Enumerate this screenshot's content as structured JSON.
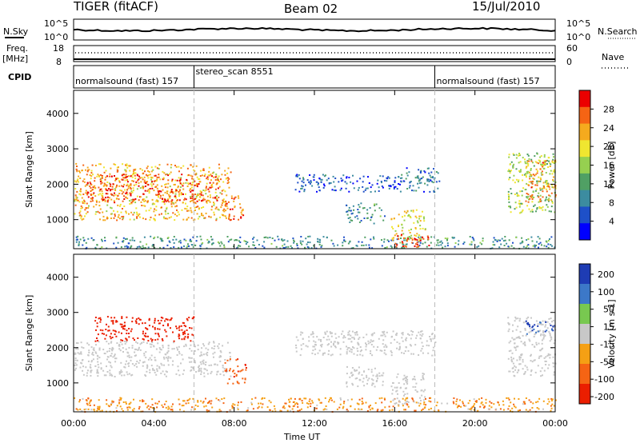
{
  "header": {
    "left": "TIGER (fitACF)",
    "center": "Beam 02",
    "right": "15/Jul/2010"
  },
  "top_panel": {
    "left_label": "N.Sky",
    "right_label": "N.Search",
    "scale_top": "10^5",
    "scale_bottom": "10^0",
    "freq_label_1": "Freq.",
    "freq_label_2": "[MHz]",
    "freq_ticks": [
      "18",
      "8"
    ],
    "nave_label": "Nave",
    "nave_ticks": [
      "60",
      "0"
    ],
    "cpid_label": "CPID"
  },
  "cpid": [
    {
      "name": "normalsound (fast)",
      "id": "157",
      "start": "00:00",
      "end": "06:00"
    },
    {
      "name": "stereo_scan",
      "id": "8551",
      "start": "06:00",
      "end": "18:00"
    },
    {
      "name": "normalsound (fast)",
      "id": "157",
      "start": "18:00",
      "end": "00:00"
    }
  ],
  "chart_data": [
    {
      "type": "heatmap",
      "title": "Beam 02",
      "xlabel": "Time UT",
      "ylabel": "Slant Range [km]",
      "x_ticks": [
        "00:00",
        "04:00",
        "08:00",
        "12:00",
        "16:00",
        "20:00",
        "00:00"
      ],
      "y_ticks": [
        1000,
        2000,
        3000,
        4000
      ],
      "xlim_hours": [
        0,
        24
      ],
      "ylim": [
        180,
        4650
      ],
      "colorbar": {
        "label": "Power [dB]",
        "ticks": [
          4,
          8,
          12,
          16,
          20,
          24,
          28
        ],
        "range": [
          0,
          32
        ],
        "colors": [
          "#0000ff",
          "#1e50c8",
          "#3c8ca0",
          "#50a064",
          "#96d050",
          "#f0e630",
          "#f5aa1e",
          "#f56414",
          "#eb0000"
        ]
      },
      "regions": [
        {
          "t": [
            0.0,
            7.8
          ],
          "r": [
            1000,
            2600
          ],
          "value": 22
        },
        {
          "t": [
            0.5,
            7.2
          ],
          "r": [
            1500,
            2300
          ],
          "value": 28
        },
        {
          "t": [
            7.5,
            8.6
          ],
          "r": [
            1000,
            1700
          ],
          "value": 26
        },
        {
          "t": [
            0.0,
            24.0
          ],
          "r": [
            200,
            550
          ],
          "value": 10
        },
        {
          "t": [
            13.5,
            15.5
          ],
          "r": [
            900,
            1500
          ],
          "value": 10
        },
        {
          "t": [
            11.0,
            16.5
          ],
          "r": [
            1800,
            2300
          ],
          "value": 6
        },
        {
          "t": [
            16.5,
            18.2
          ],
          "r": [
            1800,
            2500
          ],
          "value": 8
        },
        {
          "t": [
            15.8,
            17.5
          ],
          "r": [
            400,
            1300
          ],
          "value": 20
        },
        {
          "t": [
            16.0,
            17.8
          ],
          "r": [
            250,
            600
          ],
          "value": 28
        },
        {
          "t": [
            21.6,
            24.0
          ],
          "r": [
            1200,
            2900
          ],
          "value": 16
        },
        {
          "t": [
            22.5,
            24.0
          ],
          "r": [
            1500,
            2700
          ],
          "value": 24
        }
      ]
    },
    {
      "type": "heatmap",
      "xlabel": "Time UT",
      "ylabel": "Slant Range [km]",
      "x_ticks": [
        "00:00",
        "04:00",
        "08:00",
        "12:00",
        "16:00",
        "20:00",
        "00:00"
      ],
      "y_ticks": [
        1000,
        2000,
        3000,
        4000
      ],
      "xlim_hours": [
        0,
        24
      ],
      "ylim": [
        180,
        4650
      ],
      "colorbar": {
        "label": "Velocity [m s-1]",
        "ticks": [
          200,
          100,
          50,
          15,
          -15,
          -50,
          -100,
          -200
        ],
        "colors": [
          "#1e3cb4",
          "#3c78c8",
          "#78c850",
          "#c8c8c8",
          "#f5a014",
          "#f56414",
          "#eb1e00"
        ]
      },
      "regions": [
        {
          "t": [
            0.0,
            7.8
          ],
          "r": [
            1200,
            2200
          ],
          "value": 0
        },
        {
          "t": [
            1.0,
            6.0
          ],
          "r": [
            2200,
            2900
          ],
          "value": -250
        },
        {
          "t": [
            7.5,
            8.6
          ],
          "r": [
            1000,
            1700
          ],
          "value": -80
        },
        {
          "t": [
            0.0,
            24.0
          ],
          "r": [
            200,
            600
          ],
          "value": -40
        },
        {
          "t": [
            13.5,
            15.5
          ],
          "r": [
            900,
            1500
          ],
          "value": 0
        },
        {
          "t": [
            11.0,
            18.0
          ],
          "r": [
            1800,
            2500
          ],
          "value": 0
        },
        {
          "t": [
            15.8,
            17.5
          ],
          "r": [
            400,
            1300
          ],
          "value": 0
        },
        {
          "t": [
            21.6,
            24.0
          ],
          "r": [
            1200,
            2900
          ],
          "value": 0
        },
        {
          "t": [
            22.5,
            24.0
          ],
          "r": [
            2400,
            2800
          ],
          "value": 120
        }
      ]
    }
  ]
}
